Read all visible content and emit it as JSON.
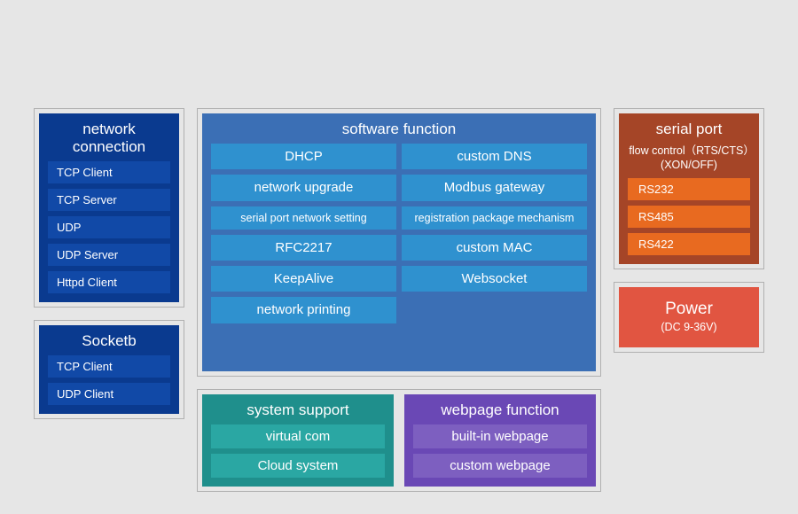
{
  "background_color": "#e6e6e6",
  "panel_border_color": "#b0b0b0",
  "network": {
    "title": "network connection",
    "bg": "#0a3a8f",
    "item_bg": "#1149a7",
    "items": [
      "TCP Client",
      "TCP Server",
      "UDP",
      "UDP Server",
      "Httpd Client"
    ]
  },
  "socketb": {
    "title": "Socketb",
    "bg": "#0a3a8f",
    "item_bg": "#1149a7",
    "items": [
      "TCP Client",
      "UDP Client"
    ]
  },
  "software": {
    "title": "software function",
    "bg": "#3b6fb5",
    "item_bg": "#2f91cf",
    "left": [
      "DHCP",
      "network upgrade",
      "serial port network setting",
      "RFC2217",
      "KeepAlive",
      "network printing"
    ],
    "right": [
      "custom DNS",
      "Modbus gateway",
      "registration package mechanism",
      "custom MAC",
      "Websocket",
      ""
    ],
    "small_idx_left": [
      2
    ],
    "small_idx_right": [
      2
    ]
  },
  "system": {
    "title": "system support",
    "bg": "#1f8f8c",
    "item_bg": "#2aa7a3",
    "items": [
      "virtual com",
      "Cloud system"
    ]
  },
  "webpage": {
    "title": "webpage function",
    "bg": "#6a48b5",
    "item_bg": "#7d5fc0",
    "items": [
      "built-in webpage",
      "custom webpage"
    ]
  },
  "serial": {
    "title": "serial port",
    "sub": "flow control（RTS/CTS）(XON/OFF)",
    "bg": "#a54527",
    "item_bg": "#e86a20",
    "items": [
      "RS232",
      "RS485",
      "RS422"
    ]
  },
  "power": {
    "title": "Power",
    "sub": "(DC 9-36V)",
    "bg": "#e15541"
  }
}
